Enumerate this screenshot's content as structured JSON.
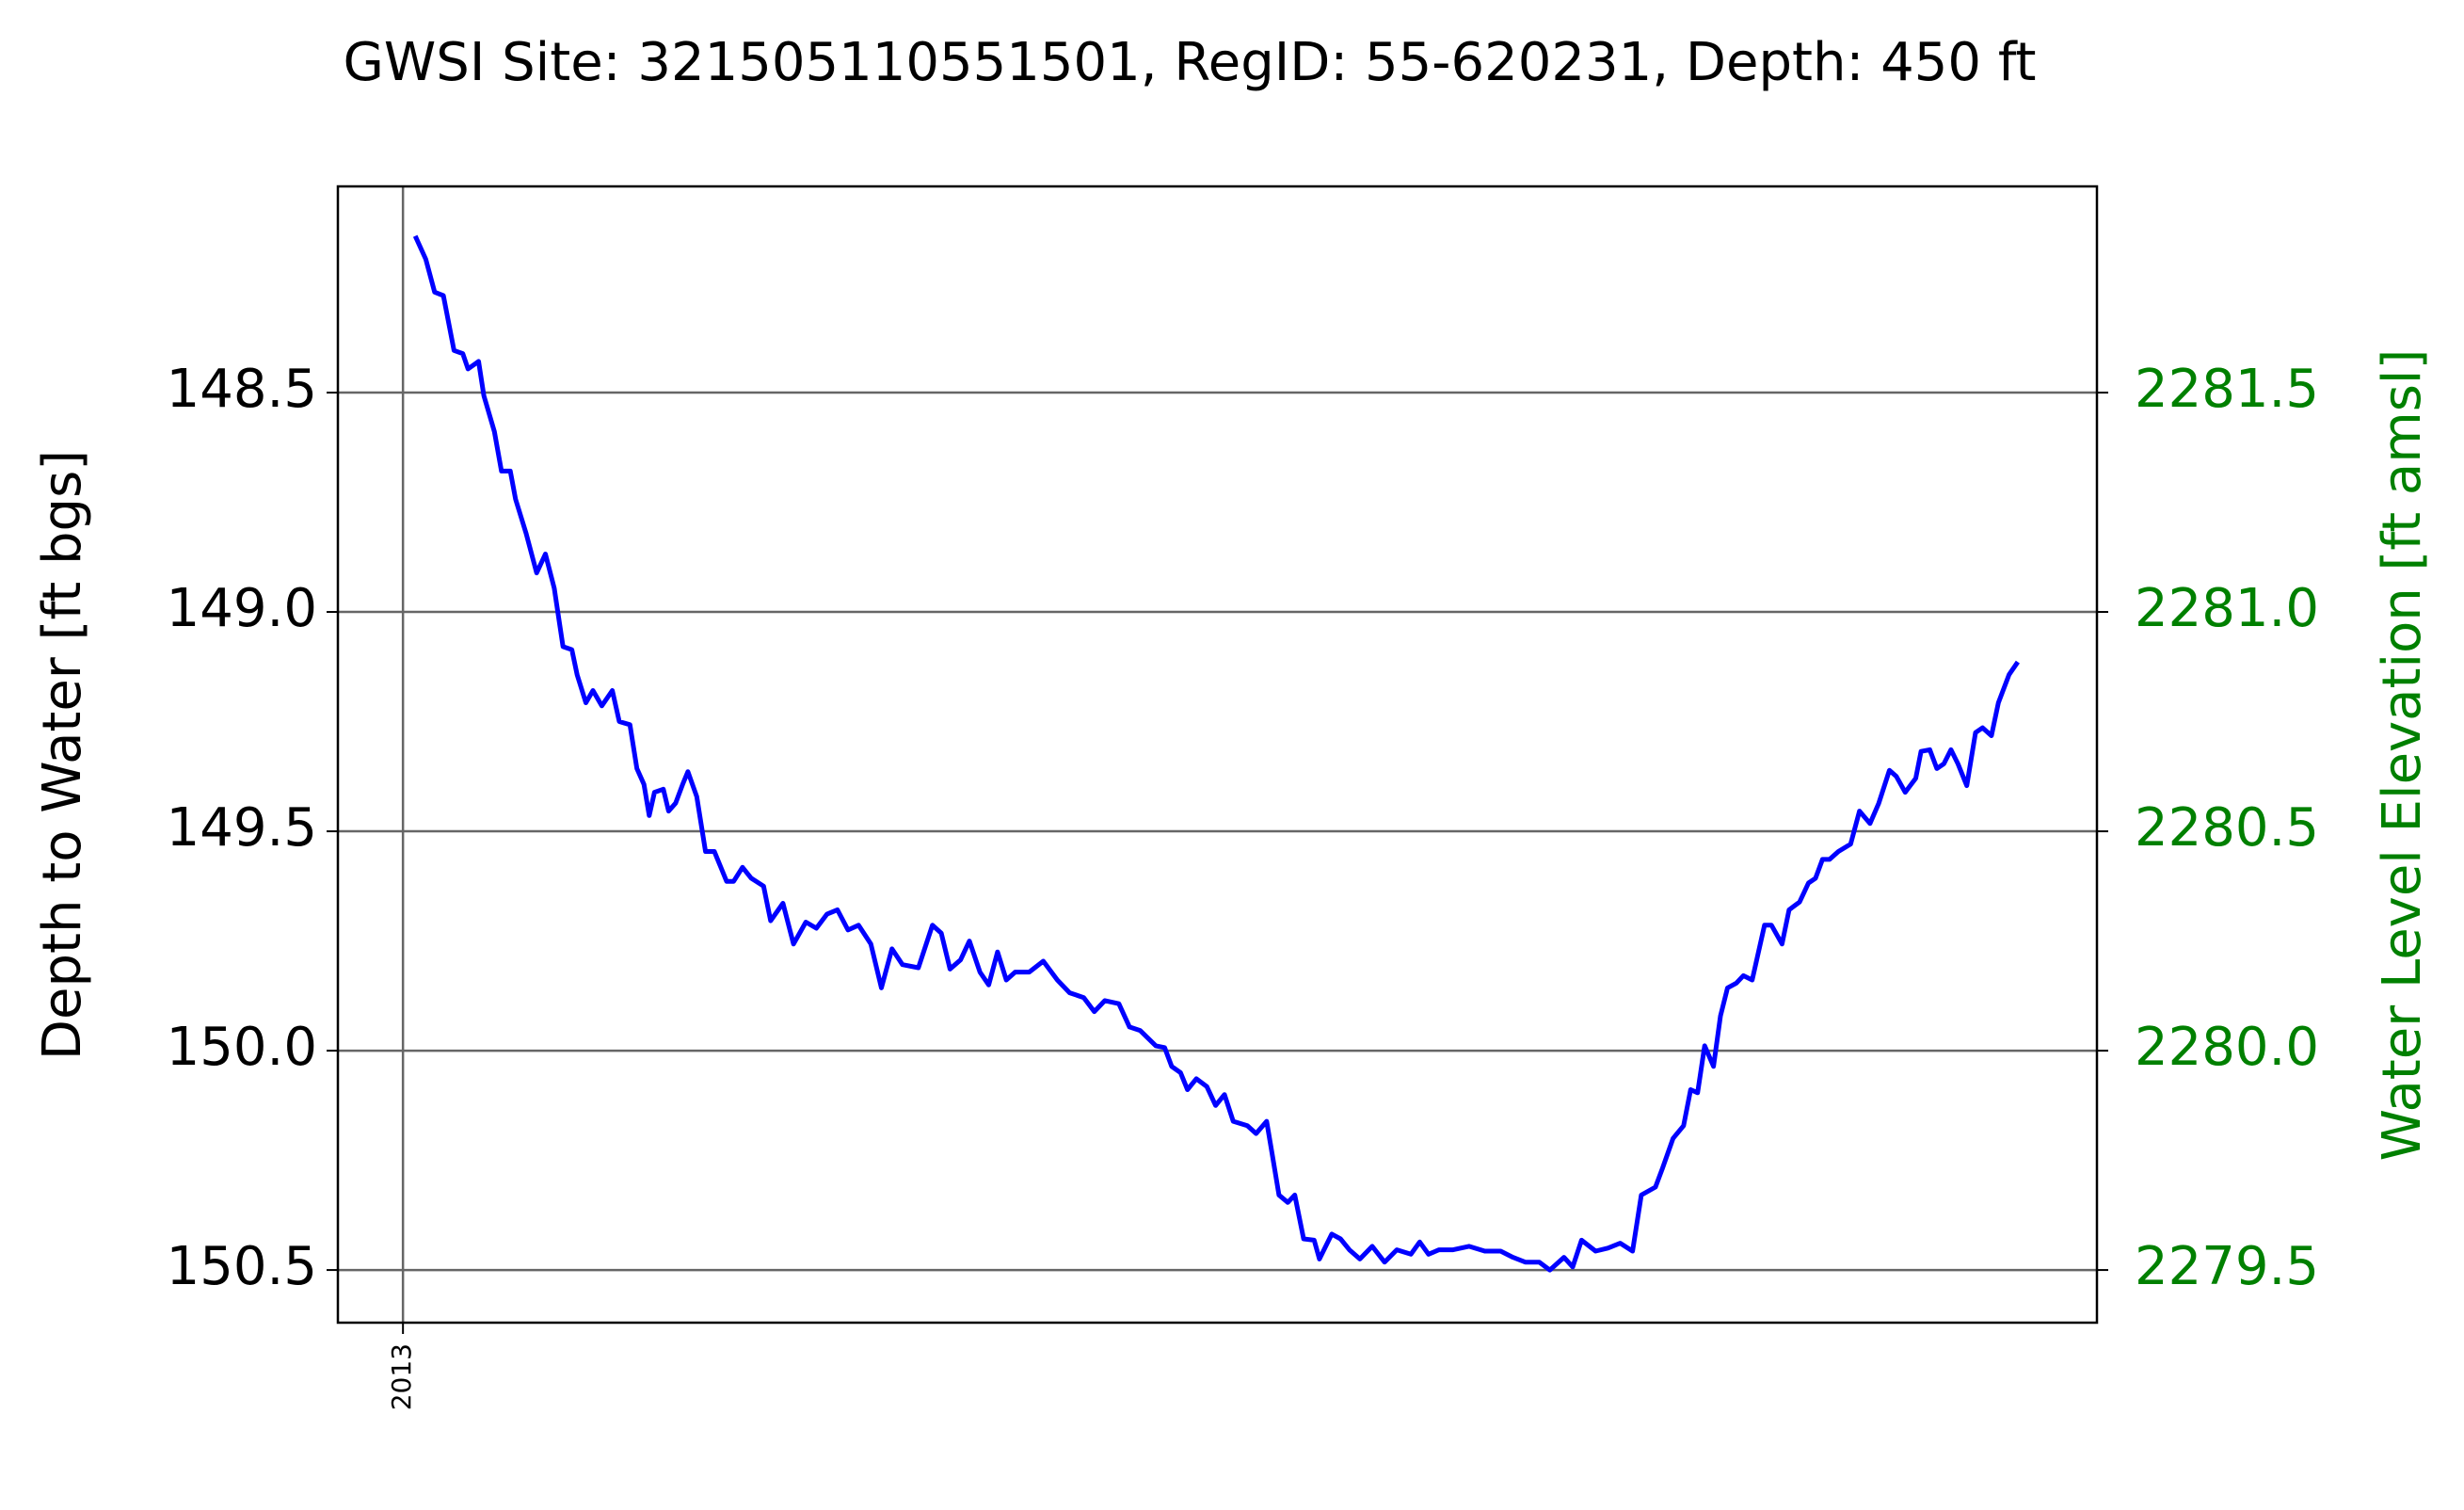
{
  "chart_data": {
    "type": "line",
    "title": "GWSI Site: 321505110551501, RegID: 55-620231, Depth: 450 ft",
    "ylabel": "Depth to Water [ft bgs]",
    "y2label": "Water Level Elevation [ft amsl]",
    "color": "#0000ff",
    "y2color": "#008000",
    "grid": true,
    "xlim": [
      2012.963,
      2013.963
    ],
    "xticks": [
      2013
    ],
    "ylim": [
      150.62,
      148.03
    ],
    "yticks": [
      148.5,
      {
        "value": 149,
        "label": "149.0"
      },
      149.5,
      {
        "value": 150,
        "label": "150.0"
      },
      150.5
    ],
    "y2lim": [
      2279.38,
      2281.97
    ],
    "y2ticks": [
      2281.5,
      {
        "value": 2281,
        "label": "2281.0"
      },
      2280.5,
      {
        "value": 2280,
        "label": "2280.0"
      },
      2279.5
    ],
    "x": [
      2013.007,
      2013.013,
      2013.018,
      2013.023,
      2013.029,
      2013.034,
      2013.037,
      2013.043,
      2013.046,
      2013.052,
      2013.056,
      2013.061,
      2013.064,
      2013.07,
      2013.076,
      2013.081,
      2013.086,
      2013.091,
      2013.096,
      2013.099,
      2013.104,
      2013.108,
      2013.113,
      2013.119,
      2013.123,
      2013.129,
      2013.133,
      2013.137,
      2013.14,
      2013.143,
      2013.148,
      2013.151,
      2013.155,
      2013.159,
      2013.162,
      2013.167,
      2013.172,
      2013.177,
      2013.184,
      2013.188,
      2013.193,
      2013.198,
      2013.205,
      2013.209,
      2013.216,
      2013.222,
      2013.229,
      2013.235,
      2013.241,
      2013.247,
      2013.253,
      2013.259,
      2013.266,
      2013.272,
      2013.278,
      2013.284,
      2013.293,
      2013.301,
      2013.306,
      2013.311,
      2013.317,
      2013.322,
      2013.328,
      2013.333,
      2013.338,
      2013.343,
      2013.348,
      2013.356,
      2013.364,
      2013.372,
      2013.379,
      2013.387,
      2013.393,
      2013.399,
      2013.407,
      2013.413,
      2013.419,
      2013.428,
      2013.433,
      2013.437,
      2013.442,
      2013.446,
      2013.451,
      2013.457,
      2013.462,
      2013.467,
      2013.472,
      2013.48,
      2013.485,
      2013.491,
      2013.494,
      2013.498,
      2013.503,
      2013.507,
      2013.512,
      2013.518,
      2013.521,
      2013.528,
      2013.533,
      2013.538,
      2013.544,
      2013.551,
      2013.558,
      2013.565,
      2013.573,
      2013.578,
      2013.583,
      2013.589,
      2013.597,
      2013.606,
      2013.615,
      2013.624,
      2013.631,
      2013.638,
      2013.646,
      2013.652,
      2013.66,
      2013.665,
      2013.67,
      2013.678,
      2013.685,
      2013.692,
      2013.699,
      2013.704,
      2013.712,
      2013.716,
      2013.722,
      2013.728,
      2013.732,
      2013.736,
      2013.74,
      2013.745,
      2013.749,
      2013.753,
      2013.758,
      2013.762,
      2013.767,
      2013.774,
      2013.778,
      2013.784,
      2013.788,
      2013.794,
      2013.799,
      2013.803,
      2013.807,
      2013.811,
      2013.816,
      2013.823,
      2013.828,
      2013.834,
      2013.839,
      2013.845,
      2013.849,
      2013.854,
      2013.86,
      2013.863,
      2013.868,
      2013.872,
      2013.876,
      2013.88,
      2013.884,
      2013.889,
      2013.894,
      2013.898,
      2013.903,
      2013.907,
      2013.913,
      2013.918
    ],
    "values": [
      148.143,
      148.196,
      148.271,
      148.279,
      148.404,
      148.411,
      148.446,
      148.429,
      148.507,
      148.589,
      148.679,
      148.679,
      148.743,
      148.821,
      148.911,
      148.868,
      148.946,
      149.079,
      149.086,
      149.143,
      149.207,
      149.179,
      149.214,
      149.179,
      149.25,
      149.257,
      149.357,
      149.393,
      149.464,
      149.411,
      149.404,
      149.454,
      149.436,
      149.393,
      149.364,
      149.421,
      149.546,
      149.546,
      149.614,
      149.614,
      149.582,
      149.607,
      149.625,
      149.704,
      149.664,
      149.757,
      149.707,
      149.721,
      149.689,
      149.679,
      149.725,
      149.714,
      149.757,
      149.857,
      149.768,
      149.804,
      149.811,
      149.714,
      149.732,
      149.814,
      149.793,
      149.75,
      149.821,
      149.85,
      149.775,
      149.839,
      149.821,
      149.821,
      149.796,
      149.839,
      149.868,
      149.879,
      149.911,
      149.886,
      149.893,
      149.946,
      149.954,
      149.989,
      149.993,
      150.036,
      150.05,
      150.089,
      150.064,
      150.082,
      150.125,
      150.1,
      150.161,
      150.171,
      150.189,
      150.161,
      150.232,
      150.329,
      150.346,
      150.329,
      150.429,
      150.432,
      150.475,
      150.418,
      150.429,
      150.454,
      150.475,
      150.446,
      150.482,
      150.454,
      150.464,
      150.436,
      150.464,
      150.454,
      150.454,
      150.446,
      150.457,
      150.457,
      150.471,
      150.482,
      150.482,
      150.5,
      150.471,
      150.493,
      150.432,
      150.457,
      150.45,
      150.439,
      150.457,
      150.329,
      150.311,
      150.268,
      150.2,
      150.171,
      150.089,
      150.096,
      149.989,
      150.036,
      149.921,
      149.857,
      149.846,
      149.829,
      149.839,
      149.714,
      149.714,
      149.757,
      149.679,
      149.661,
      149.618,
      149.607,
      149.564,
      149.564,
      149.546,
      149.529,
      149.454,
      149.482,
      149.436,
      149.361,
      149.375,
      149.411,
      149.379,
      149.318,
      149.314,
      149.357,
      149.346,
      149.314,
      149.346,
      149.396,
      149.275,
      149.264,
      149.282,
      149.207,
      149.143,
      149.114
    ]
  }
}
